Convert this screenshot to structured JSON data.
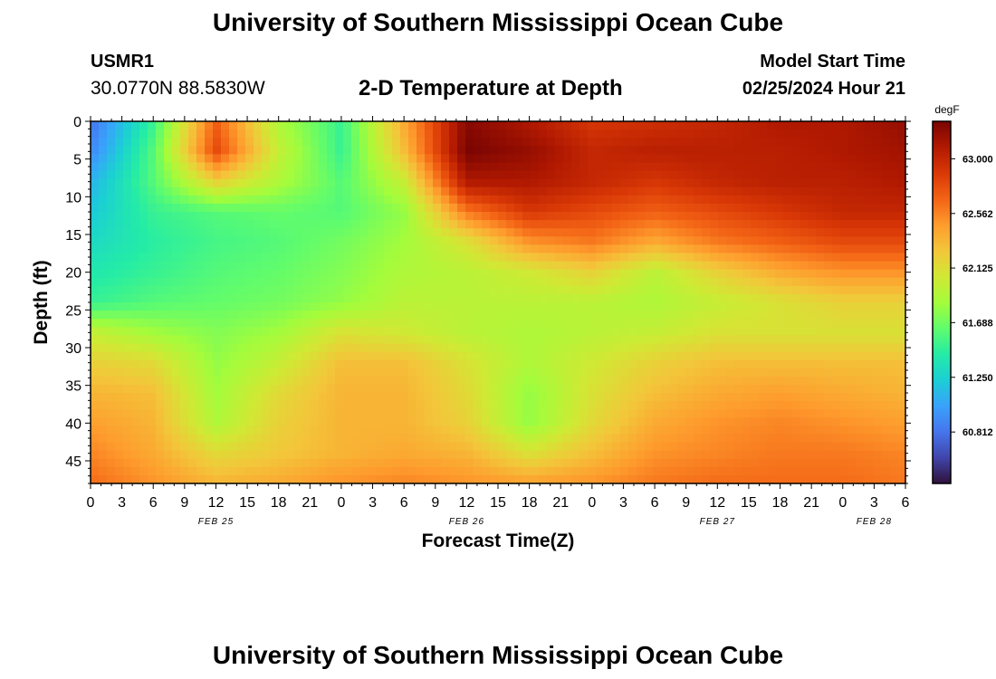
{
  "header": {
    "title": "University of Southern Mississippi Ocean Cube",
    "station_id": "USMR1",
    "coordinates": "30.0770N  88.5830W",
    "subtitle": "2-D Temperature at Depth",
    "model_start_label": "Model Start Time",
    "model_start_value": "02/25/2024 Hour 21"
  },
  "footer": {
    "title": "University of Southern Mississippi Ocean Cube"
  },
  "chart_data": {
    "type": "heatmap",
    "title": "2-D Temperature at Depth",
    "xlabel": "Forecast Time(Z)",
    "ylabel": "Depth (ft)",
    "x_range_hours": [
      0,
      78
    ],
    "y_range": [
      0,
      48
    ],
    "x_ticks": [
      "0",
      "3",
      "6",
      "9",
      "12",
      "15",
      "18",
      "21",
      "0",
      "3",
      "6",
      "9",
      "12",
      "15",
      "18",
      "21",
      "0",
      "3",
      "6",
      "9",
      "12",
      "15",
      "18",
      "21",
      "0",
      "3",
      "6"
    ],
    "date_labels": [
      {
        "label": "FEB 25",
        "at_hour": 12
      },
      {
        "label": "FEB 26",
        "at_hour": 36
      },
      {
        "label": "FEB 27",
        "at_hour": 60
      },
      {
        "label": "FEB 28",
        "at_hour": 75
      }
    ],
    "y_ticks": [
      0,
      5,
      10,
      15,
      20,
      25,
      30,
      35,
      40,
      45
    ],
    "colorbar": {
      "unit": "degF",
      "min": 60.4,
      "max": 63.3,
      "tick_values": [
        60.812,
        61.25,
        61.688,
        62.125,
        62.562,
        63.0
      ],
      "tick_labels": [
        "60.812",
        "61.250",
        "61.688",
        "62.125",
        "62.562",
        "63.000"
      ],
      "colors": [
        "#30123b",
        "#4145ab",
        "#4675ed",
        "#39a2fc",
        "#1bcfd4",
        "#24eca6",
        "#61fc6c",
        "#a4fc3b",
        "#d1e834",
        "#f3c63a",
        "#fe9b2d",
        "#f36315",
        "#d93806",
        "#b11901",
        "#7a0402"
      ]
    },
    "grid_hours": [
      0,
      6,
      12,
      18,
      24,
      30,
      36,
      42,
      48,
      54,
      60,
      66,
      72,
      78
    ],
    "grid_depths": [
      0,
      4,
      8,
      12,
      16,
      20,
      24,
      28,
      32,
      36,
      40,
      44,
      48
    ],
    "values": [
      [
        60.8,
        61.5,
        62.7,
        61.9,
        61.5,
        62.4,
        63.25,
        63.1,
        62.9,
        62.95,
        63.0,
        63.1,
        63.1,
        63.2
      ],
      [
        60.9,
        61.6,
        62.8,
        62.0,
        61.5,
        62.3,
        63.3,
        63.2,
        63.0,
        63.05,
        63.05,
        63.05,
        63.1,
        63.15
      ],
      [
        61.1,
        61.6,
        62.2,
        61.9,
        61.6,
        62.0,
        63.1,
        63.1,
        63.0,
        62.9,
        63.0,
        63.05,
        63.05,
        63.1
      ],
      [
        61.2,
        61.5,
        61.6,
        61.65,
        61.6,
        61.8,
        62.6,
        62.9,
        62.8,
        62.7,
        62.8,
        62.9,
        63.0,
        63.0
      ],
      [
        61.3,
        61.45,
        61.55,
        61.6,
        61.7,
        61.85,
        62.1,
        62.5,
        62.6,
        62.4,
        62.6,
        62.7,
        62.8,
        62.8
      ],
      [
        61.4,
        61.5,
        61.6,
        61.65,
        61.75,
        61.9,
        61.95,
        62.05,
        62.2,
        61.95,
        62.2,
        62.4,
        62.5,
        62.5
      ],
      [
        61.5,
        61.6,
        61.65,
        61.7,
        61.8,
        61.95,
        61.95,
        61.95,
        61.95,
        61.9,
        62.0,
        62.1,
        62.2,
        62.2
      ],
      [
        62.0,
        61.85,
        61.75,
        61.85,
        62.1,
        62.05,
        61.95,
        61.9,
        61.95,
        62.0,
        62.1,
        62.1,
        62.1,
        62.1
      ],
      [
        62.2,
        62.15,
        61.8,
        62.0,
        62.3,
        62.3,
        62.1,
        61.9,
        62.05,
        62.2,
        62.3,
        62.3,
        62.3,
        62.3
      ],
      [
        62.35,
        62.3,
        61.85,
        62.15,
        62.35,
        62.35,
        62.15,
        61.8,
        62.1,
        62.3,
        62.4,
        62.45,
        62.4,
        62.35
      ],
      [
        62.45,
        62.35,
        61.9,
        62.2,
        62.35,
        62.35,
        62.2,
        61.8,
        62.15,
        62.4,
        62.5,
        62.55,
        62.5,
        62.45
      ],
      [
        62.55,
        62.4,
        62.15,
        62.25,
        62.35,
        62.4,
        62.35,
        62.1,
        62.3,
        62.5,
        62.55,
        62.6,
        62.6,
        62.55
      ],
      [
        62.65,
        62.5,
        62.35,
        62.4,
        62.5,
        62.55,
        62.5,
        62.45,
        62.5,
        62.6,
        62.65,
        62.65,
        62.65,
        62.6
      ]
    ]
  }
}
